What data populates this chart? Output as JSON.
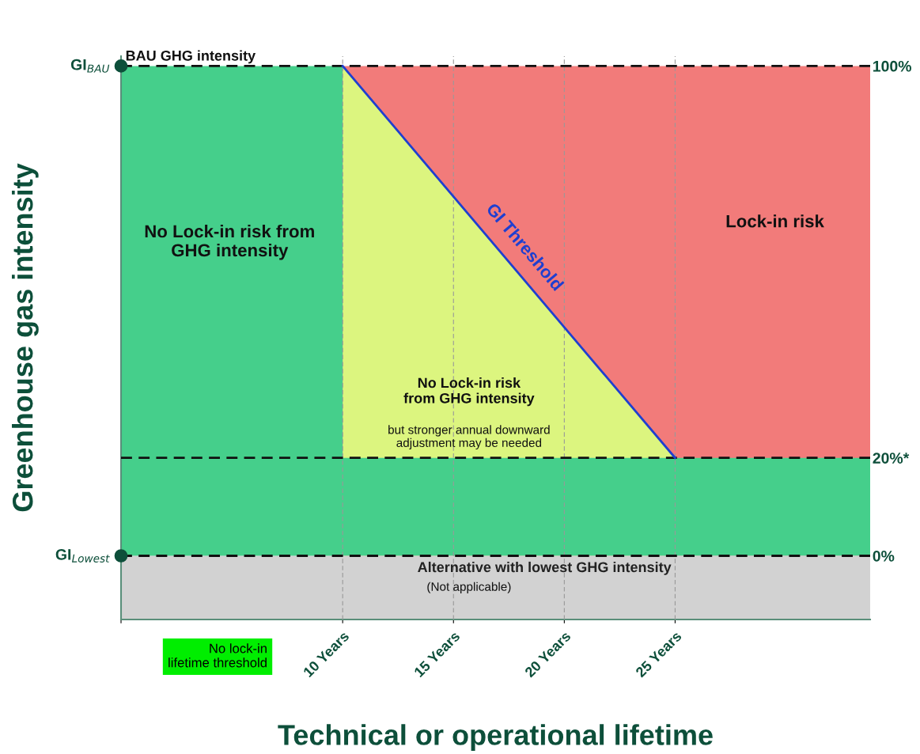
{
  "chart_data": {
    "type": "area",
    "xlabel": "Technical or operational lifetime",
    "ylabel": "Greenhouse gas intensity",
    "xlim": [
      0,
      33.8
    ],
    "ylim": [
      -13,
      102
    ],
    "xticks": [
      {
        "value": 0,
        "label": null
      },
      {
        "value": 10,
        "label": "10 Years"
      },
      {
        "value": 15,
        "label": "15 Years"
      },
      {
        "value": 20,
        "label": "20 Years"
      },
      {
        "value": 25,
        "label": "25 Years"
      }
    ],
    "yticks": [
      {
        "value": 0,
        "label": "0%"
      },
      {
        "value": 20,
        "label": "20%*"
      },
      {
        "value": 100,
        "label": "100%"
      }
    ],
    "series": [
      {
        "color": "#f27b7a",
        "x": [
          10,
          33.8
        ],
        "values": [
          100,
          100
        ]
      },
      {
        "color": "#dcf57f",
        "x": [
          10,
          25
        ],
        "values": [
          100,
          20
        ]
      },
      {
        "color": "#45cf8b",
        "x": [
          0,
          10
        ],
        "values": [
          100,
          100
        ]
      },
      {
        "type": "line",
        "name": "GI Threshold",
        "color": "#1f3fd0",
        "x": [
          10,
          25
        ],
        "values": [
          100,
          20
        ]
      }
    ],
    "bands": [
      {
        "axis": "y",
        "from": 0,
        "to": 20,
        "color": "#45cf8b"
      },
      {
        "axis": "y",
        "from": -13,
        "to": 0,
        "color": "#d2d2d2",
        "label": "Alternative with lowest GHG intensity"
      }
    ],
    "ref_lines": [
      {
        "axis": "y",
        "value": 100,
        "label": "BAU GHG intensity",
        "color": "#111111",
        "line_style": "dashed"
      },
      {
        "axis": "y",
        "value": 20,
        "color": "#111111",
        "line_style": "dashed"
      },
      {
        "axis": "y",
        "value": 0,
        "color": "#111111",
        "line_style": "dashed"
      },
      {
        "axis": "x",
        "value": 10,
        "color": "#999999",
        "line_style": "dashed"
      },
      {
        "axis": "x",
        "value": 15,
        "color": "#999999",
        "line_style": "dashed"
      },
      {
        "axis": "x",
        "value": 20,
        "color": "#999999",
        "line_style": "dashed"
      },
      {
        "axis": "x",
        "value": 25,
        "color": "#999999",
        "line_style": "dashed"
      }
    ],
    "annotations": [
      {
        "text": "GI$_{BAU}$",
        "x": 0,
        "y": 100
      },
      {
        "text": "GI$_{Lowest}$",
        "x": 0,
        "y": 0
      },
      "No Lock-in risk from\nGHG intensity",
      "Lock-in risk",
      "No Lock-in risk\nfrom GHG intensity",
      "but stronger annual downward\nadjustment may be needed",
      "(Not applicable)",
      "No lock-in\nlifetime threshold"
    ],
    "grid": false,
    "legend": false
  }
}
